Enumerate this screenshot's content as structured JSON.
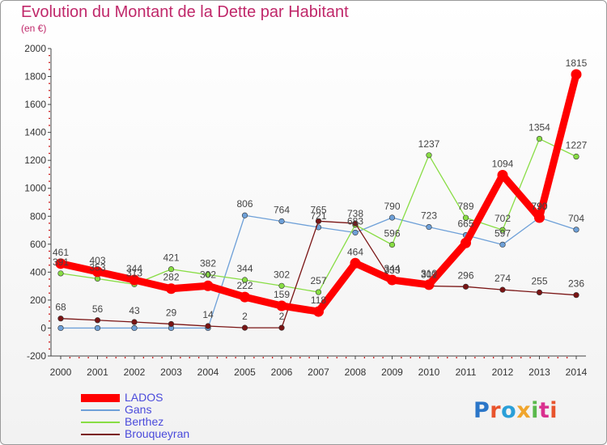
{
  "title": "Evolution du Montant de la Dette par Habitant",
  "subtitle": "(en €)",
  "logo": {
    "text": "Proxiti",
    "colors": [
      "#2b76c8",
      "#e8542d",
      "#2a9fd8",
      "#f0a52c",
      "#5ab94c",
      "#d9308f",
      "#e8542d"
    ]
  },
  "chart_data": {
    "type": "line",
    "title": "Evolution du Montant de la Dette par Habitant",
    "subtitle": "(en €)",
    "x": [
      "2000",
      "2001",
      "2002",
      "2003",
      "2004",
      "2005",
      "2006",
      "2007",
      "2008",
      "2009",
      "2010",
      "2011",
      "2012",
      "2013",
      "2014"
    ],
    "ylim": [
      -200,
      2000
    ],
    "yticks": [
      "-200",
      "0",
      "200",
      "400",
      "600",
      "800",
      "1000",
      "1200",
      "1400",
      "1600",
      "1800",
      "2000"
    ],
    "grid": false,
    "legend": "bottom-left",
    "series": [
      {
        "name": "LADOS",
        "color": "#ff0000",
        "values": [
          461,
          403,
          344,
          282,
          302,
          222,
          159,
          118,
          464,
          344,
          310,
          609,
          1094,
          790,
          1815
        ],
        "labels": [
          "461",
          "403",
          "344",
          "282",
          "302",
          "222",
          "159",
          "118",
          "464",
          "344",
          "310",
          "",
          "1094",
          "790",
          "1815"
        ]
      },
      {
        "name": "Gans",
        "color": "#6ea0d8",
        "values": [
          0,
          0,
          0,
          0,
          0,
          806,
          764,
          721,
          683,
          790,
          723,
          665,
          597,
          790,
          704
        ],
        "labels": [
          "",
          "",
          "",
          "",
          "",
          "806",
          "764",
          "721",
          "683",
          "790",
          "723",
          "665",
          "597",
          "790",
          "704"
        ]
      },
      {
        "name": "Berthez",
        "color": "#88dd44",
        "values": [
          391,
          353,
          313,
          421,
          382,
          344,
          302,
          257,
          738,
          596,
          1237,
          789,
          702,
          1354,
          1227
        ],
        "labels": [
          "391",
          "353",
          "313",
          "421",
          "382",
          "344",
          "302",
          "257",
          "738",
          "596",
          "1237",
          "789",
          "702",
          "1354",
          "1227"
        ]
      },
      {
        "name": "Brouqueyran",
        "color": "#7a1414",
        "values": [
          68,
          56,
          43,
          29,
          14,
          2,
          2,
          765,
          749,
          333,
          301,
          296,
          274,
          255,
          236
        ],
        "labels": [
          "68",
          "56",
          "43",
          "29",
          "14",
          "2",
          "2",
          "765",
          "",
          "333",
          "301",
          "296",
          "274",
          "255",
          "236"
        ]
      }
    ]
  }
}
